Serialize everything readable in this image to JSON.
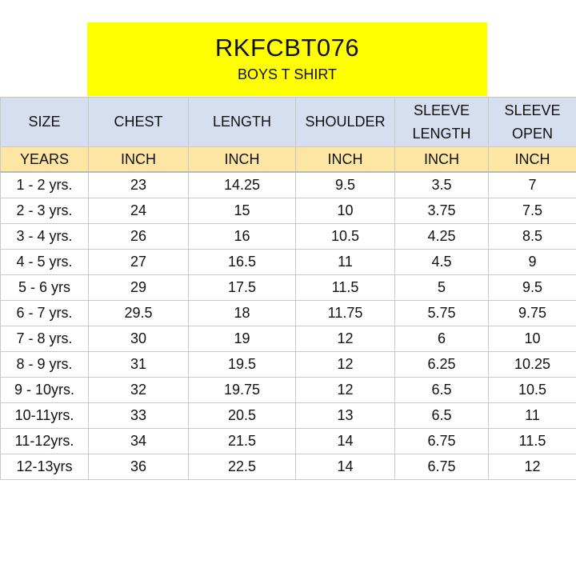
{
  "title": {
    "code": "RKFCBT076",
    "subtitle": "BOYS T SHIRT"
  },
  "colors": {
    "title_bg": "#ffff00",
    "header_bg": "#d6dff0",
    "unit_bg": "#fde6a3"
  },
  "table": {
    "headers": [
      [
        "SIZE"
      ],
      [
        "CHEST"
      ],
      [
        "LENGTH"
      ],
      [
        "SHOULDER"
      ],
      [
        "SLEEVE",
        "LENGTH"
      ],
      [
        "SLEEVE",
        "OPEN"
      ]
    ],
    "units": [
      "YEARS",
      "INCH",
      "INCH",
      "INCH",
      "INCH",
      "INCH"
    ],
    "rows": [
      [
        "1 - 2 yrs.",
        "23",
        "14.25",
        "9.5",
        "3.5",
        "7"
      ],
      [
        "2 - 3 yrs.",
        "24",
        "15",
        "10",
        "3.75",
        "7.5"
      ],
      [
        "3 - 4 yrs.",
        "26",
        "16",
        "10.5",
        "4.25",
        "8.5"
      ],
      [
        "4 - 5 yrs.",
        "27",
        "16.5",
        "11",
        "4.5",
        "9"
      ],
      [
        "5 - 6 yrs",
        "29",
        "17.5",
        "11.5",
        "5",
        "9.5"
      ],
      [
        "6 - 7 yrs.",
        "29.5",
        "18",
        "11.75",
        "5.75",
        "9.75"
      ],
      [
        "7 - 8 yrs.",
        "30",
        "19",
        "12",
        "6",
        "10"
      ],
      [
        "8 - 9 yrs.",
        "31",
        "19.5",
        "12",
        "6.25",
        "10.25"
      ],
      [
        "9 - 10yrs.",
        "32",
        "19.75",
        "12",
        "6.5",
        "10.5"
      ],
      [
        "10-11yrs.",
        "33",
        "20.5",
        "13",
        "6.5",
        "11"
      ],
      [
        "11-12yrs.",
        "34",
        "21.5",
        "14",
        "6.75",
        "11.5"
      ],
      [
        "12-13yrs",
        "36",
        "22.5",
        "14",
        "6.75",
        "12"
      ]
    ]
  }
}
